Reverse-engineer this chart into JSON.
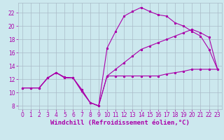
{
  "background_color": "#cce8ee",
  "grid_color": "#aabbc8",
  "line_color": "#aa00aa",
  "xlim": [
    -0.5,
    23.5
  ],
  "ylim": [
    7.5,
    23.5
  ],
  "xlabel": "Windchill (Refroidissement éolien,°C)",
  "xlabel_fontsize": 6.5,
  "xticks": [
    0,
    1,
    2,
    3,
    4,
    5,
    6,
    7,
    8,
    9,
    10,
    11,
    12,
    13,
    14,
    15,
    16,
    17,
    18,
    19,
    20,
    21,
    22,
    23
  ],
  "yticks": [
    8,
    10,
    12,
    14,
    16,
    18,
    20,
    22
  ],
  "tick_fontsize": 5.5,
  "curve1_x": [
    0,
    1,
    2,
    3,
    4,
    5,
    6,
    7,
    8,
    9,
    10,
    11,
    12,
    13,
    14,
    15,
    16,
    17,
    18,
    19,
    20,
    21,
    22,
    23
  ],
  "curve1_y": [
    10.7,
    10.7,
    10.7,
    12.2,
    13.0,
    12.2,
    12.2,
    10.2,
    8.5,
    8.0,
    12.5,
    12.5,
    12.5,
    12.5,
    12.5,
    12.5,
    12.5,
    12.8,
    13.0,
    13.2,
    13.5,
    13.5,
    13.5,
    13.5
  ],
  "curve2_x": [
    0,
    1,
    2,
    3,
    4,
    5,
    6,
    7,
    8,
    9,
    10,
    11,
    12,
    13,
    14,
    15,
    16,
    17,
    18,
    19,
    20,
    21,
    22,
    23
  ],
  "curve2_y": [
    10.7,
    10.7,
    10.7,
    12.2,
    13.0,
    12.3,
    12.2,
    10.3,
    8.5,
    8.0,
    16.7,
    19.2,
    21.5,
    22.2,
    22.8,
    22.2,
    21.7,
    21.5,
    20.5,
    20.0,
    19.2,
    18.5,
    16.5,
    13.5
  ],
  "curve3_x": [
    0,
    1,
    2,
    3,
    4,
    5,
    6,
    7,
    8,
    9,
    10,
    11,
    12,
    13,
    14,
    15,
    16,
    17,
    18,
    19,
    20,
    21,
    22,
    23
  ],
  "curve3_y": [
    10.7,
    10.7,
    10.7,
    12.2,
    13.0,
    12.3,
    12.2,
    10.5,
    8.5,
    8.0,
    12.5,
    13.5,
    14.5,
    15.5,
    16.5,
    17.0,
    17.5,
    18.0,
    18.5,
    19.0,
    19.5,
    19.0,
    18.3,
    13.5
  ]
}
